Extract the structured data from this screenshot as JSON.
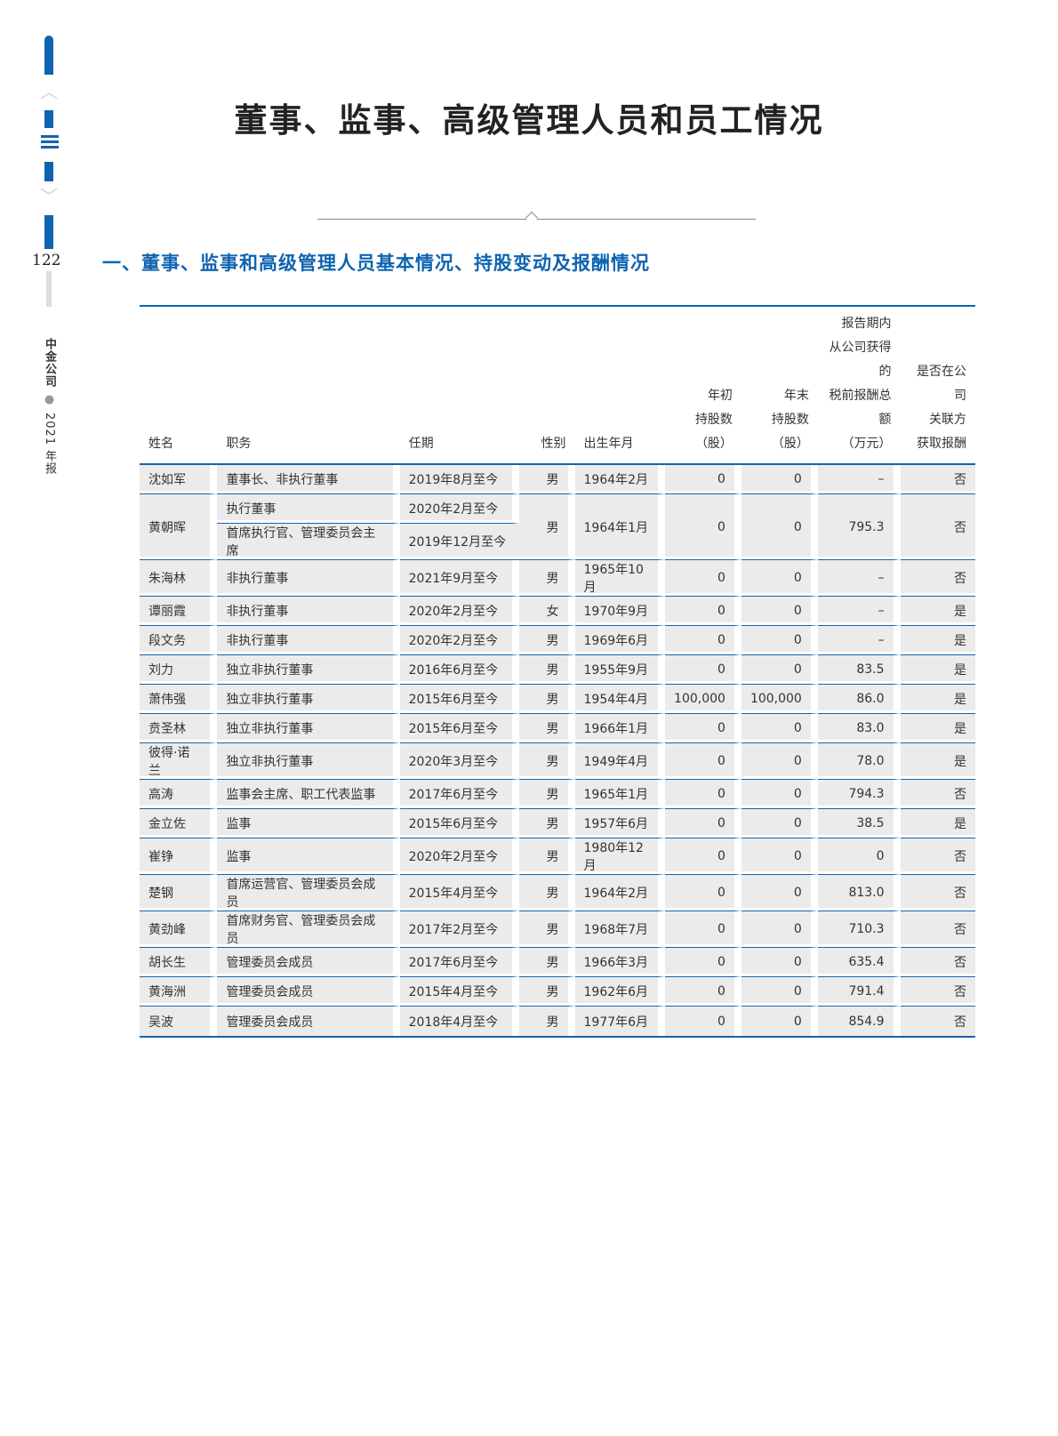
{
  "sidebar": {
    "page_number": "122",
    "company": "中金公司",
    "report": "2021 年报",
    "nav_icons": [
      "chevron-up-icon",
      "list-icon",
      "chevron-down-icon"
    ]
  },
  "title": "董事、监事、高级管理人员和员工情况",
  "section_title": "一、董事、监事和高级管理人员基本情况、持股变动及报酬情况",
  "table": {
    "headers": [
      "姓名",
      "职务",
      "任期",
      "性别",
      "出生年月",
      "年初\n持股数\n（股）",
      "年末\n持股数\n（股）",
      "报告期内\n从公司获得的\n税前报酬总额\n（万元）",
      "是否在公司\n关联方\n获取报酬"
    ],
    "rows": [
      [
        "沈如军",
        "董事长、非执行董事",
        "2019年8月至今",
        "男",
        "1964年2月",
        "0",
        "0",
        "–",
        "否"
      ],
      [
        "黄朝晖",
        [
          "执行董事",
          "首席执行官、管理委员会主席"
        ],
        [
          "2020年2月至今",
          "2019年12月至今"
        ],
        "男",
        "1964年1月",
        "0",
        "0",
        "795.3",
        "否"
      ],
      [
        "朱海林",
        "非执行董事",
        "2021年9月至今",
        "男",
        "1965年10月",
        "0",
        "0",
        "–",
        "否"
      ],
      [
        "谭丽霞",
        "非执行董事",
        "2020年2月至今",
        "女",
        "1970年9月",
        "0",
        "0",
        "–",
        "是"
      ],
      [
        "段文务",
        "非执行董事",
        "2020年2月至今",
        "男",
        "1969年6月",
        "0",
        "0",
        "–",
        "是"
      ],
      [
        "刘力",
        "独立非执行董事",
        "2016年6月至今",
        "男",
        "1955年9月",
        "0",
        "0",
        "83.5",
        "是"
      ],
      [
        "萧伟强",
        "独立非执行董事",
        "2015年6月至今",
        "男",
        "1954年4月",
        "100,000",
        "100,000",
        "86.0",
        "是"
      ],
      [
        "贲圣林",
        "独立非执行董事",
        "2015年6月至今",
        "男",
        "1966年1月",
        "0",
        "0",
        "83.0",
        "是"
      ],
      [
        "彼得·诺兰",
        "独立非执行董事",
        "2020年3月至今",
        "男",
        "1949年4月",
        "0",
        "0",
        "78.0",
        "是"
      ],
      [
        "高涛",
        "监事会主席、职工代表监事",
        "2017年6月至今",
        "男",
        "1965年1月",
        "0",
        "0",
        "794.3",
        "否"
      ],
      [
        "金立佐",
        "监事",
        "2015年6月至今",
        "男",
        "1957年6月",
        "0",
        "0",
        "38.5",
        "是"
      ],
      [
        "崔铮",
        "监事",
        "2020年2月至今",
        "男",
        "1980年12月",
        "0",
        "0",
        "0",
        "否"
      ],
      [
        "楚钢",
        "首席运营官、管理委员会成员",
        "2015年4月至今",
        "男",
        "1964年2月",
        "0",
        "0",
        "813.0",
        "否"
      ],
      [
        "黄劲峰",
        "首席财务官、管理委员会成员",
        "2017年2月至今",
        "男",
        "1968年7月",
        "0",
        "0",
        "710.3",
        "否"
      ],
      [
        "胡长生",
        "管理委员会成员",
        "2017年6月至今",
        "男",
        "1966年3月",
        "0",
        "0",
        "635.4",
        "否"
      ],
      [
        "黄海洲",
        "管理委员会成员",
        "2015年4月至今",
        "男",
        "1962年6月",
        "0",
        "0",
        "791.4",
        "否"
      ],
      [
        "吴波",
        "管理委员会成员",
        "2018年4月至今",
        "男",
        "1977年6月",
        "0",
        "0",
        "854.9",
        "否"
      ]
    ]
  },
  "colors": {
    "accent": "#0f64b0",
    "row_bg": "#ebebeb"
  }
}
